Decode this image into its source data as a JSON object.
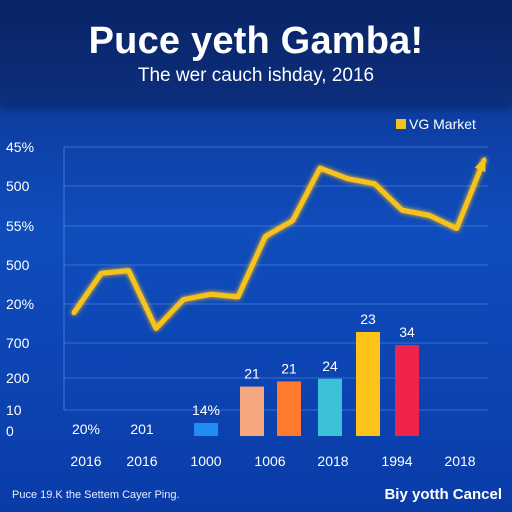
{
  "header": {
    "title": "Puce yeth Gamba!",
    "subtitle": "The wer cauch ishday, 2016"
  },
  "footer": {
    "left_text": "Puce 19.K the Settem Cayer Ping.",
    "right_text": "Biy yotth Cancel"
  },
  "colors": {
    "background": "#0f4dbd",
    "line": "#f7c21c",
    "grid": "#5f8fe0"
  },
  "chart_data": {
    "type": "line",
    "title": "Puce yeth Gamba!",
    "subtitle": "The wer cauch ishday, 2016",
    "legend": {
      "label": "VG Market",
      "position": "top-right"
    },
    "y_tick_labels": [
      "45%",
      "500",
      "55%",
      "500",
      "20%",
      "700",
      "200",
      "10",
      "0"
    ],
    "x_tick_labels": [
      "2016",
      "2016",
      "1000",
      "1006",
      "2018",
      "1994",
      "2018"
    ],
    "ylim": [
      0,
      100
    ],
    "line_series": {
      "name": "VG Market",
      "values": [
        37,
        52,
        53,
        31,
        42,
        44,
        43,
        66,
        72,
        92,
        88,
        86,
        76,
        74,
        69,
        95
      ],
      "arrow_end": true
    },
    "bars": [
      {
        "label": "20%",
        "value": 0,
        "color": "#1f8df2"
      },
      {
        "label": "201",
        "value": 0,
        "color": "#1f8df2"
      },
      {
        "label": "14%",
        "value": 5,
        "color": "#1f8df2"
      },
      {
        "label": "21",
        "value": 19,
        "color": "#f5a77f"
      },
      {
        "label": "21",
        "value": 21,
        "color": "#ff7a2c"
      },
      {
        "label": "24",
        "value": 22,
        "color": "#3cc2d6"
      },
      {
        "label": "23",
        "value": 40,
        "color": "#ffc21a"
      },
      {
        "label": "34",
        "value": 35,
        "color": "#f0234a"
      }
    ]
  }
}
